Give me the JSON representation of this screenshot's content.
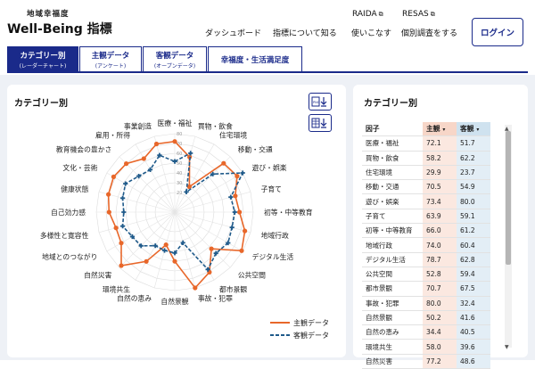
{
  "header": {
    "logo_sub": "地域幸福度",
    "logo_main": "Well-Being 指標",
    "nav_top": [
      {
        "label": "RAIDA"
      },
      {
        "label": "RESAS"
      }
    ],
    "nav": [
      {
        "label": "ダッシュボード"
      },
      {
        "label": "指標について知る"
      },
      {
        "label": "使いこなす"
      },
      {
        "label": "個別調査をする"
      }
    ],
    "login_label": "ログイン"
  },
  "tabs": [
    {
      "label": "カテゴリー別",
      "sub": "(レーダーチャート)",
      "active": true
    },
    {
      "label": "主観データ",
      "sub": "(アンケート)",
      "active": false
    },
    {
      "label": "客観データ",
      "sub": "(オープンデータ)",
      "active": false
    },
    {
      "label": "幸福度・生活満足度",
      "sub": "",
      "active": false
    }
  ],
  "left_card": {
    "title": "カテゴリー別",
    "download_png_icon": "png-download-icon",
    "download_csv_icon": "table-download-icon"
  },
  "right_card": {
    "title": "カテゴリー別",
    "columns": [
      "因子",
      "主観",
      "客観"
    ],
    "rows": [
      {
        "factor": "医療・福祉",
        "subj": "72.1",
        "obj": "51.7"
      },
      {
        "factor": "買物・飲食",
        "subj": "58.2",
        "obj": "62.2"
      },
      {
        "factor": "住宅環境",
        "subj": "29.9",
        "obj": "23.7"
      },
      {
        "factor": "移動・交通",
        "subj": "70.5",
        "obj": "54.9"
      },
      {
        "factor": "遊び・娯楽",
        "subj": "73.4",
        "obj": "80.0"
      },
      {
        "factor": "子育て",
        "subj": "63.9",
        "obj": "59.1"
      },
      {
        "factor": "初等・中等教育",
        "subj": "66.0",
        "obj": "61.2"
      },
      {
        "factor": "地域行政",
        "subj": "74.0",
        "obj": "60.4"
      },
      {
        "factor": "デジタル生活",
        "subj": "78.7",
        "obj": "62.8"
      },
      {
        "factor": "公共空間",
        "subj": "52.8",
        "obj": "59.4"
      },
      {
        "factor": "都市景観",
        "subj": "70.7",
        "obj": "67.5"
      },
      {
        "factor": "事故・犯罪",
        "subj": "80.0",
        "obj": "32.4"
      },
      {
        "factor": "自然景観",
        "subj": "50.2",
        "obj": "41.6"
      },
      {
        "factor": "自然の恵み",
        "subj": "34.4",
        "obj": "40.5"
      },
      {
        "factor": "環境共生",
        "subj": "58.0",
        "obj": "39.6"
      },
      {
        "factor": "自然災害",
        "subj": "77.2",
        "obj": "48.6"
      }
    ]
  },
  "chart_data": {
    "type": "radar",
    "categories": [
      "医療・福祉",
      "買物・飲食",
      "住宅環境",
      "移動・交通",
      "遊び・娯楽",
      "子育て",
      "初等・中等教育",
      "地域行政",
      "デジタル生活",
      "公共空間",
      "都市景観",
      "事故・犯罪",
      "自然景観",
      "自然の恵み",
      "環境共生",
      "自然災害",
      "地域とのつながり",
      "多様性と寛容性",
      "自己効力感",
      "健康状態",
      "文化・芸術",
      "教育機会の豊かさ",
      "雇用・所得",
      "事業創造"
    ],
    "rlim": [
      0,
      80
    ],
    "ticks": [
      20,
      30,
      40,
      50,
      60,
      70,
      80
    ],
    "series": [
      {
        "name": "主観データ",
        "color": "#e8672a",
        "values": [
          72.1,
          58.2,
          29.9,
          70.5,
          73.4,
          63.9,
          66.0,
          74.0,
          78.7,
          52.8,
          70.7,
          80.0,
          50.2,
          34.4,
          58.0,
          77.2,
          63.0,
          62.0,
          67.0,
          70.0,
          72.0,
          70.0,
          63.0,
          72.0
        ]
      },
      {
        "name": "客観データ",
        "color": "#1f5a8a",
        "values": [
          51.7,
          62.2,
          23.7,
          54.9,
          80.0,
          59.1,
          61.2,
          60.4,
          62.8,
          59.4,
          67.5,
          32.4,
          41.6,
          40.5,
          39.6,
          48.6,
          50.0,
          55.0,
          52.0,
          55.0,
          58.0,
          52.0,
          50.0,
          60.0
        ]
      }
    ],
    "legend": "bottom-right"
  }
}
